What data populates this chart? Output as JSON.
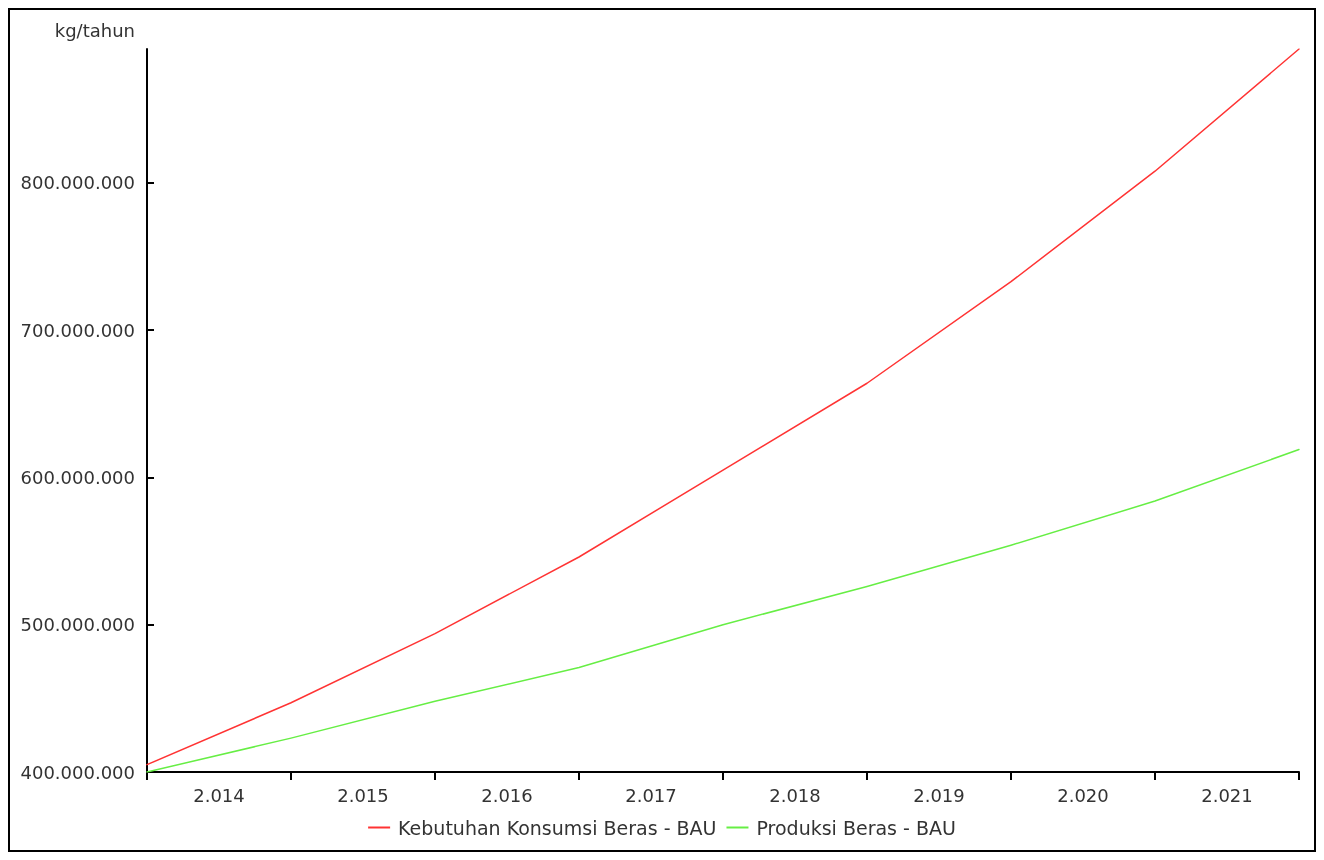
{
  "chart_data": {
    "type": "line",
    "ylabel": "kg/tahun",
    "x": [
      2014,
      2015,
      2016,
      2017,
      2018,
      2019,
      2020,
      2021,
      2022
    ],
    "series": [
      {
        "name": "Kebutuhan Konsumsi Beras - BAU",
        "color": "#ff3333",
        "values": [
          405000000,
          447000000,
          494000000,
          546000000,
          605000000,
          664000000,
          733000000,
          808000000,
          891000000
        ]
      },
      {
        "name": "Produksi Beras - BAU",
        "color": "#66ee44",
        "values": [
          400000000,
          423000000,
          448000000,
          471000000,
          500000000,
          526000000,
          554000000,
          584000000,
          619000000
        ]
      }
    ],
    "xlim": [
      2014,
      2022
    ],
    "xticks": [
      {
        "value": 2014,
        "label": null
      },
      {
        "value": 2014.5,
        "label": "2.014"
      },
      {
        "value": 2015,
        "label": null
      },
      {
        "value": 2015.5,
        "label": "2.015"
      },
      {
        "value": 2016,
        "label": null
      },
      {
        "value": 2016.5,
        "label": "2.016"
      },
      {
        "value": 2017,
        "label": null
      },
      {
        "value": 2017.5,
        "label": "2.017"
      },
      {
        "value": 2018,
        "label": null
      },
      {
        "value": 2018.5,
        "label": "2.018"
      },
      {
        "value": 2019,
        "label": null
      },
      {
        "value": 2019.5,
        "label": "2.019"
      },
      {
        "value": 2020,
        "label": null
      },
      {
        "value": 2020.5,
        "label": "2.020"
      },
      {
        "value": 2021,
        "label": null
      },
      {
        "value": 2021.5,
        "label": "2.021"
      },
      {
        "value": 2022,
        "label": null
      }
    ],
    "ylim": [
      400000000,
      891000000
    ],
    "yticks": [
      {
        "value": 400000000,
        "label": "400.000.000"
      },
      {
        "value": 500000000,
        "label": "500.000.000"
      },
      {
        "value": 600000000,
        "label": "600.000.000"
      },
      {
        "value": 700000000,
        "label": "700.000.000"
      },
      {
        "value": 800000000,
        "label": "800.000.000"
      }
    ],
    "legend": "bottom"
  }
}
